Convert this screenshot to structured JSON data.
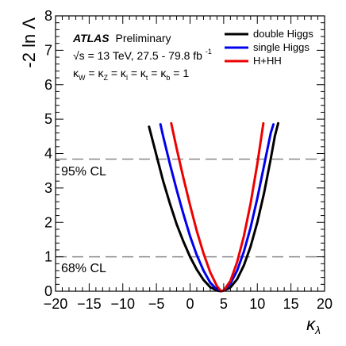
{
  "chart_data": {
    "type": "line",
    "xlabel": "κ_λ",
    "ylabel": "-2 ln Λ",
    "xlim": [
      -20,
      20
    ],
    "ylim": [
      0,
      8
    ],
    "x_ticks": [
      "−20",
      "−15",
      "−10",
      "−5",
      "0",
      "5",
      "10",
      "15",
      "20"
    ],
    "y_ticks": [
      "0",
      "1",
      "2",
      "3",
      "4",
      "5",
      "6",
      "7",
      "8"
    ],
    "annotations": {
      "experiment": "ATLAS",
      "status": "Preliminary",
      "energy_line": "√s = 13 TeV, 27.5 - 79.8 fb",
      "lumi_superscript": "-1",
      "couplings_line": "κ_W = κ_Z = κ_l = κ_t = κ_b = 1"
    },
    "reference_lines": [
      {
        "label": "95% CL",
        "y": 3.84
      },
      {
        "label": "68% CL",
        "y": 1.0
      }
    ],
    "legend_position": "top-right",
    "series": [
      {
        "name": "double Higgs",
        "color": "#000000",
        "points": [
          [
            -6.1,
            4.78
          ],
          [
            -5,
            3.95
          ],
          [
            -4,
            3.2
          ],
          [
            -3,
            2.55
          ],
          [
            -2,
            1.95
          ],
          [
            -1,
            1.45
          ],
          [
            0,
            1.0
          ],
          [
            1,
            0.63
          ],
          [
            2,
            0.33
          ],
          [
            3,
            0.12
          ],
          [
            4,
            0.02
          ],
          [
            4.6,
            0.0
          ],
          [
            5,
            0.02
          ],
          [
            6,
            0.11
          ],
          [
            7,
            0.35
          ],
          [
            8,
            0.75
          ],
          [
            9,
            1.3
          ],
          [
            10,
            2.0
          ],
          [
            11,
            2.85
          ],
          [
            12,
            3.85
          ],
          [
            12.6,
            4.5
          ],
          [
            13.1,
            4.88
          ]
        ]
      },
      {
        "name": "single Higgs",
        "color": "#0000ee",
        "points": [
          [
            -4.4,
            4.85
          ],
          [
            -4,
            4.5
          ],
          [
            -3,
            3.7
          ],
          [
            -2,
            2.95
          ],
          [
            -1,
            2.25
          ],
          [
            0,
            1.6
          ],
          [
            1,
            1.05
          ],
          [
            2,
            0.6
          ],
          [
            3,
            0.25
          ],
          [
            4,
            0.05
          ],
          [
            4.6,
            0.0
          ],
          [
            5,
            0.02
          ],
          [
            6,
            0.22
          ],
          [
            7,
            0.6
          ],
          [
            8,
            1.15
          ],
          [
            9,
            1.85
          ],
          [
            10,
            2.7
          ],
          [
            11,
            3.65
          ],
          [
            12,
            4.6
          ],
          [
            12.4,
            4.85
          ]
        ]
      },
      {
        "name": "H+HH",
        "color": "#ee0000",
        "points": [
          [
            -2.8,
            4.88
          ],
          [
            -2,
            4.15
          ],
          [
            -1,
            3.3
          ],
          [
            0,
            2.5
          ],
          [
            1,
            1.75
          ],
          [
            2,
            1.1
          ],
          [
            3,
            0.55
          ],
          [
            4,
            0.15
          ],
          [
            4.6,
            0.0
          ],
          [
            5,
            0.02
          ],
          [
            6,
            0.3
          ],
          [
            7,
            0.85
          ],
          [
            8,
            1.6
          ],
          [
            9,
            2.55
          ],
          [
            10,
            3.7
          ],
          [
            10.9,
            4.88
          ]
        ]
      }
    ]
  }
}
